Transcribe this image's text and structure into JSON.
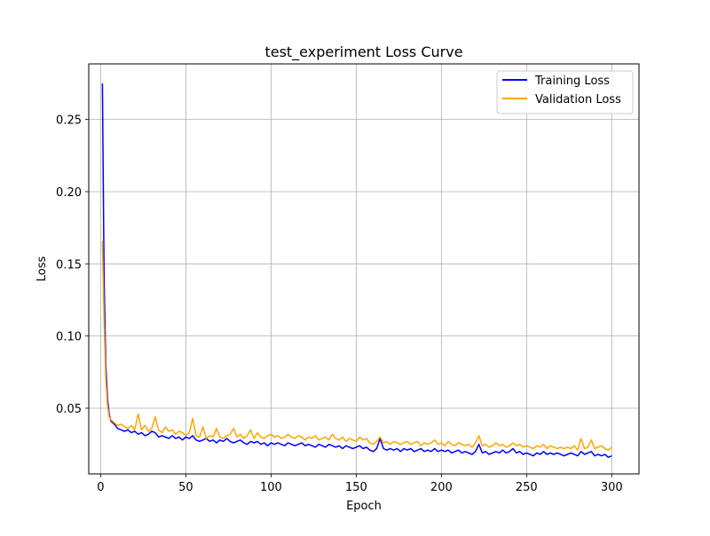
{
  "chart_data": {
    "type": "line",
    "title": "test_experiment Loss Curve",
    "xlabel": "Epoch",
    "ylabel": "Loss",
    "xlim": [
      -7,
      316
    ],
    "ylim": [
      0.0045,
      0.2885
    ],
    "xticks": [
      0,
      50,
      100,
      150,
      200,
      250,
      300
    ],
    "yticks": [
      0.05,
      0.1,
      0.15,
      0.2,
      0.25
    ],
    "ytick_labels": [
      "0.05",
      "0.10",
      "0.15",
      "0.20",
      "0.25"
    ],
    "grid": true,
    "legend_position": "top-right",
    "series": [
      {
        "name": "Training Loss",
        "color": "#0000ff",
        "x": [
          1,
          2,
          3,
          4,
          5,
          6,
          8,
          10,
          12,
          14,
          16,
          18,
          20,
          22,
          24,
          26,
          28,
          30,
          32,
          34,
          36,
          38,
          40,
          42,
          44,
          46,
          48,
          50,
          52,
          54,
          56,
          58,
          60,
          62,
          64,
          66,
          68,
          70,
          72,
          74,
          76,
          78,
          80,
          82,
          84,
          86,
          88,
          90,
          92,
          94,
          96,
          98,
          100,
          102,
          104,
          106,
          108,
          110,
          112,
          114,
          116,
          118,
          120,
          122,
          124,
          126,
          128,
          130,
          132,
          134,
          136,
          138,
          140,
          142,
          144,
          146,
          148,
          150,
          152,
          154,
          156,
          158,
          160,
          162,
          164,
          166,
          168,
          170,
          172,
          174,
          176,
          178,
          180,
          182,
          184,
          186,
          188,
          190,
          192,
          194,
          196,
          198,
          200,
          202,
          204,
          206,
          208,
          210,
          212,
          214,
          216,
          218,
          220,
          222,
          224,
          226,
          228,
          230,
          232,
          234,
          236,
          238,
          240,
          242,
          244,
          246,
          248,
          250,
          252,
          254,
          256,
          258,
          260,
          262,
          264,
          266,
          268,
          270,
          272,
          274,
          276,
          278,
          280,
          282,
          284,
          286,
          288,
          290,
          292,
          294,
          296,
          298,
          300
        ],
        "values": [
          0.275,
          0.14,
          0.08,
          0.057,
          0.046,
          0.041,
          0.039,
          0.036,
          0.035,
          0.034,
          0.035,
          0.033,
          0.034,
          0.032,
          0.033,
          0.031,
          0.032,
          0.034,
          0.033,
          0.03,
          0.031,
          0.03,
          0.029,
          0.031,
          0.029,
          0.03,
          0.028,
          0.03,
          0.029,
          0.031,
          0.028,
          0.027,
          0.028,
          0.029,
          0.027,
          0.028,
          0.026,
          0.028,
          0.027,
          0.029,
          0.027,
          0.026,
          0.027,
          0.028,
          0.026,
          0.025,
          0.027,
          0.026,
          0.027,
          0.025,
          0.026,
          0.024,
          0.026,
          0.025,
          0.026,
          0.025,
          0.024,
          0.026,
          0.025,
          0.024,
          0.025,
          0.026,
          0.024,
          0.025,
          0.024,
          0.023,
          0.025,
          0.024,
          0.023,
          0.025,
          0.024,
          0.023,
          0.024,
          0.022,
          0.024,
          0.023,
          0.022,
          0.023,
          0.024,
          0.022,
          0.023,
          0.021,
          0.02,
          0.022,
          0.029,
          0.022,
          0.021,
          0.022,
          0.021,
          0.022,
          0.02,
          0.022,
          0.021,
          0.022,
          0.02,
          0.021,
          0.022,
          0.02,
          0.021,
          0.02,
          0.022,
          0.02,
          0.021,
          0.02,
          0.021,
          0.019,
          0.02,
          0.021,
          0.019,
          0.02,
          0.019,
          0.018,
          0.02,
          0.025,
          0.019,
          0.02,
          0.018,
          0.019,
          0.02,
          0.019,
          0.021,
          0.019,
          0.02,
          0.022,
          0.019,
          0.02,
          0.018,
          0.019,
          0.018,
          0.017,
          0.019,
          0.018,
          0.02,
          0.018,
          0.019,
          0.018,
          0.019,
          0.018,
          0.017,
          0.018,
          0.019,
          0.018,
          0.017,
          0.02,
          0.018,
          0.019,
          0.02,
          0.017,
          0.018,
          0.017,
          0.018,
          0.016,
          0.017
        ]
      },
      {
        "name": "Validation Loss",
        "color": "#ffa500",
        "x": [
          1,
          2,
          3,
          4,
          5,
          6,
          8,
          10,
          12,
          14,
          16,
          18,
          20,
          22,
          24,
          26,
          28,
          30,
          32,
          34,
          36,
          38,
          40,
          42,
          44,
          46,
          48,
          50,
          52,
          54,
          56,
          58,
          60,
          62,
          64,
          66,
          68,
          70,
          72,
          74,
          76,
          78,
          80,
          82,
          84,
          86,
          88,
          90,
          92,
          94,
          96,
          98,
          100,
          102,
          104,
          106,
          108,
          110,
          112,
          114,
          116,
          118,
          120,
          122,
          124,
          126,
          128,
          130,
          132,
          134,
          136,
          138,
          140,
          142,
          144,
          146,
          148,
          150,
          152,
          154,
          156,
          158,
          160,
          162,
          164,
          166,
          168,
          170,
          172,
          174,
          176,
          178,
          180,
          182,
          184,
          186,
          188,
          190,
          192,
          194,
          196,
          198,
          200,
          202,
          204,
          206,
          208,
          210,
          212,
          214,
          216,
          218,
          220,
          222,
          224,
          226,
          228,
          230,
          232,
          234,
          236,
          238,
          240,
          242,
          244,
          246,
          248,
          250,
          252,
          254,
          256,
          258,
          260,
          262,
          264,
          266,
          268,
          270,
          272,
          274,
          276,
          278,
          280,
          282,
          284,
          286,
          288,
          290,
          292,
          294,
          296,
          298,
          300
        ],
        "values": [
          0.166,
          0.11,
          0.07,
          0.052,
          0.044,
          0.042,
          0.04,
          0.038,
          0.039,
          0.037,
          0.036,
          0.038,
          0.035,
          0.046,
          0.035,
          0.038,
          0.034,
          0.036,
          0.044,
          0.035,
          0.033,
          0.037,
          0.034,
          0.035,
          0.032,
          0.034,
          0.033,
          0.031,
          0.033,
          0.043,
          0.031,
          0.03,
          0.037,
          0.029,
          0.031,
          0.03,
          0.036,
          0.03,
          0.029,
          0.031,
          0.032,
          0.036,
          0.03,
          0.032,
          0.029,
          0.031,
          0.035,
          0.029,
          0.033,
          0.03,
          0.029,
          0.031,
          0.032,
          0.03,
          0.031,
          0.029,
          0.03,
          0.032,
          0.03,
          0.029,
          0.031,
          0.03,
          0.028,
          0.03,
          0.029,
          0.031,
          0.028,
          0.029,
          0.03,
          0.028,
          0.032,
          0.029,
          0.028,
          0.03,
          0.027,
          0.029,
          0.028,
          0.027,
          0.03,
          0.028,
          0.029,
          0.026,
          0.025,
          0.027,
          0.03,
          0.026,
          0.027,
          0.025,
          0.027,
          0.026,
          0.025,
          0.026,
          0.027,
          0.025,
          0.026,
          0.027,
          0.024,
          0.026,
          0.025,
          0.026,
          0.028,
          0.025,
          0.026,
          0.024,
          0.027,
          0.025,
          0.024,
          0.026,
          0.025,
          0.024,
          0.025,
          0.023,
          0.026,
          0.031,
          0.024,
          0.025,
          0.023,
          0.024,
          0.026,
          0.024,
          0.025,
          0.023,
          0.024,
          0.026,
          0.024,
          0.025,
          0.023,
          0.024,
          0.023,
          0.022,
          0.024,
          0.023,
          0.025,
          0.022,
          0.024,
          0.023,
          0.022,
          0.023,
          0.022,
          0.023,
          0.022,
          0.024,
          0.021,
          0.029,
          0.022,
          0.023,
          0.028,
          0.022,
          0.023,
          0.024,
          0.022,
          0.021,
          0.023
        ]
      }
    ]
  }
}
